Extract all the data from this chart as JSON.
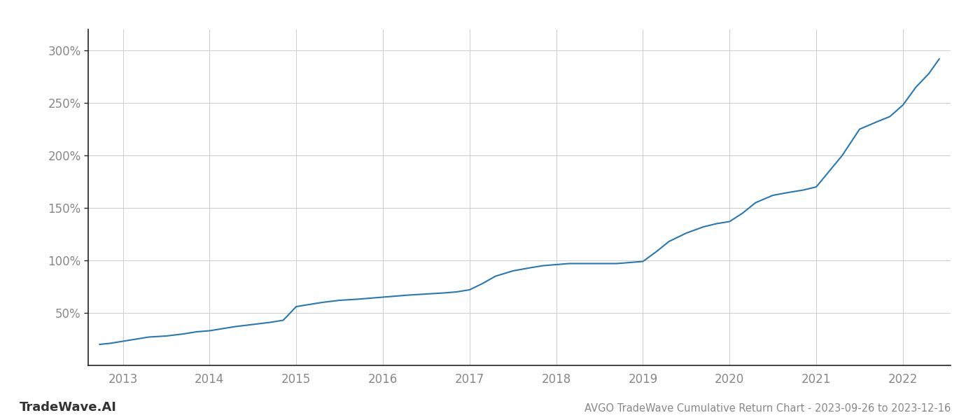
{
  "title": "AVGO TradeWave Cumulative Return Chart - 2023-09-26 to 2023-12-16",
  "watermark": "TradeWave.AI",
  "line_color": "#2878b5",
  "background_color": "#ffffff",
  "grid_color": "#cccccc",
  "x_years": [
    2013,
    2014,
    2015,
    2016,
    2017,
    2018,
    2019,
    2020,
    2021,
    2022
  ],
  "y_ticks": [
    50,
    100,
    150,
    200,
    250,
    300
  ],
  "xlim": [
    2012.6,
    2022.55
  ],
  "ylim": [
    0,
    320
  ],
  "data_x": [
    2012.73,
    2012.85,
    2013.0,
    2013.15,
    2013.3,
    2013.5,
    2013.7,
    2013.85,
    2014.0,
    2014.15,
    2014.3,
    2014.5,
    2014.7,
    2014.85,
    2015.0,
    2015.15,
    2015.3,
    2015.5,
    2015.7,
    2015.85,
    2016.0,
    2016.15,
    2016.3,
    2016.5,
    2016.7,
    2016.85,
    2017.0,
    2017.15,
    2017.3,
    2017.5,
    2017.7,
    2017.85,
    2018.0,
    2018.15,
    2018.3,
    2018.5,
    2018.7,
    2018.85,
    2019.0,
    2019.15,
    2019.3,
    2019.5,
    2019.7,
    2019.85,
    2020.0,
    2020.15,
    2020.3,
    2020.5,
    2020.7,
    2020.85,
    2021.0,
    2021.15,
    2021.3,
    2021.5,
    2021.7,
    2021.85,
    2022.0,
    2022.15,
    2022.3,
    2022.42
  ],
  "data_y": [
    20,
    21,
    23,
    25,
    27,
    28,
    30,
    32,
    33,
    35,
    37,
    39,
    41,
    43,
    56,
    58,
    60,
    62,
    63,
    64,
    65,
    66,
    67,
    68,
    69,
    70,
    72,
    78,
    85,
    90,
    93,
    95,
    96,
    97,
    97,
    97,
    97,
    98,
    99,
    108,
    118,
    126,
    132,
    135,
    137,
    145,
    155,
    162,
    165,
    167,
    170,
    185,
    200,
    225,
    232,
    237,
    248,
    265,
    278,
    292
  ]
}
